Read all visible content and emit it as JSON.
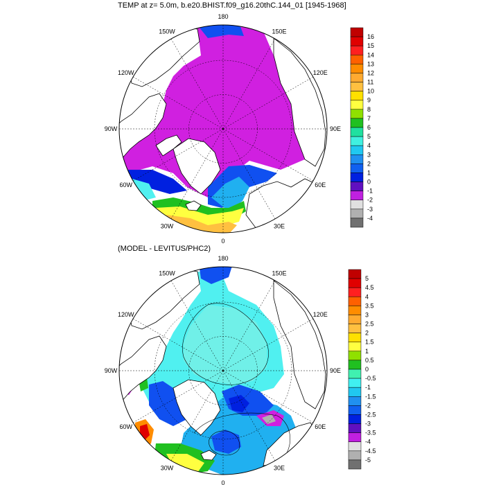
{
  "titles": {
    "top": "TEMP at z=   5.0m, b.e20.BHIST.f09_g16.20thC.144_01 [1945-1968]",
    "bottom": "(MODEL - LEVITUS/PHC2)"
  },
  "longitude_labels": [
    "180",
    "150E",
    "120E",
    "90E",
    "60E",
    "30E",
    "0",
    "30W",
    "60W",
    "90W",
    "120W",
    "150W"
  ],
  "colorbar_top": {
    "labels": [
      "16",
      "15",
      "14",
      "13",
      "12",
      "11",
      "10",
      "9",
      "8",
      "7",
      "6",
      "5",
      "4",
      "3",
      "2",
      "1",
      "0",
      "-1",
      "-2",
      "-3",
      "-4"
    ],
    "colors": [
      "#c00000",
      "#e00000",
      "#ff2020",
      "#ff6000",
      "#ff8c00",
      "#ffaa30",
      "#ffc040",
      "#ffe000",
      "#ffff40",
      "#90e000",
      "#20c020",
      "#20e0a0",
      "#40f0e0",
      "#20c8f0",
      "#2090f0",
      "#1060f0",
      "#0020e0",
      "#6010c0",
      "#c020e0",
      "#e0e0e0",
      "#b0b0b0",
      "#707070"
    ]
  },
  "colorbar_bottom": {
    "labels": [
      "5",
      "4.5",
      "4",
      "3.5",
      "3",
      "2.5",
      "2",
      "1.5",
      "1",
      "0.5",
      "0",
      "-0.5",
      "-1",
      "-1.5",
      "-2",
      "-2.5",
      "-3",
      "-3.5",
      "-4",
      "-4.5",
      "-5"
    ],
    "colors": [
      "#c00000",
      "#e00000",
      "#ff2020",
      "#ff6000",
      "#ff8c00",
      "#ffaa30",
      "#ffc040",
      "#ffe000",
      "#ffff40",
      "#90e000",
      "#20c020",
      "#40f0b0",
      "#40f0f0",
      "#20c8f0",
      "#2090f0",
      "#1060f0",
      "#0020e0",
      "#6010c0",
      "#c020e0",
      "#e0e0e0",
      "#b0b0b0",
      "#707070"
    ]
  },
  "map_colors": {
    "magenta": "#d020e0",
    "cyan": "#50f0f0",
    "cyan_light": "#70f0e8",
    "blue": "#1050f0",
    "blue_dark": "#0020e0",
    "sky": "#20b0f0",
    "green": "#20c020",
    "yellow": "#ffff40",
    "orange": "#ffc040",
    "orange_dark": "#ff8c00",
    "red": "#e00000",
    "purple": "#6010c0",
    "grey": "#b0b0b0"
  }
}
